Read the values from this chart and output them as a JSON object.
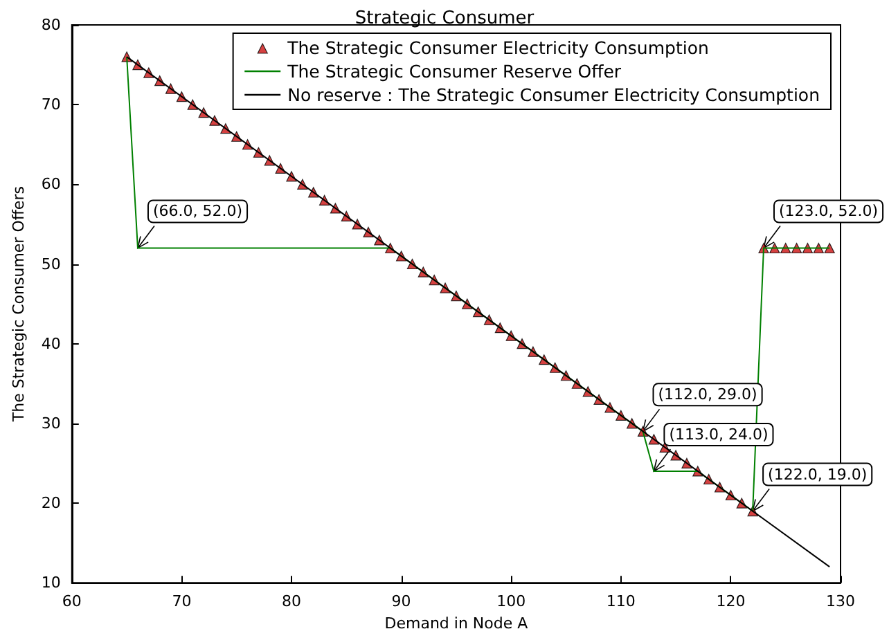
{
  "chart_data": {
    "type": "line",
    "title": "Strategic Consumer",
    "xlabel": "Demand in Node A",
    "ylabel": "The Strategic Consumer Offers",
    "xlim": [
      60,
      130
    ],
    "xticks": [
      60,
      70,
      80,
      90,
      100,
      110,
      120,
      130
    ],
    "ylim": [
      10,
      80
    ],
    "yticks": [
      10,
      20,
      30,
      40,
      50,
      60,
      70,
      80
    ],
    "legend": "top right",
    "series": [
      {
        "name": "The Strategic Consumer Electricity Consumption",
        "type": "scatter",
        "marker": "triangle",
        "color": "#cc1111",
        "x": [
          65,
          66,
          67,
          68,
          69,
          70,
          71,
          72,
          73,
          74,
          75,
          76,
          77,
          78,
          79,
          80,
          81,
          82,
          83,
          84,
          85,
          86,
          87,
          88,
          89,
          90,
          91,
          92,
          93,
          94,
          95,
          96,
          97,
          98,
          99,
          100,
          101,
          102,
          103,
          104,
          105,
          106,
          107,
          108,
          109,
          110,
          111,
          112,
          113,
          114,
          115,
          116,
          117,
          118,
          119,
          120,
          121,
          122,
          123,
          124,
          125,
          126,
          127,
          128,
          129
        ],
        "values": [
          76,
          75,
          74,
          73,
          72,
          71,
          70,
          69,
          68,
          67,
          66,
          65,
          64,
          63,
          62,
          61,
          60,
          59,
          58,
          57,
          56,
          55,
          54,
          53,
          52,
          51,
          50,
          49,
          48,
          47,
          46,
          45,
          44,
          43,
          42,
          41,
          40,
          39,
          38,
          37,
          36,
          35,
          34,
          33,
          32,
          31,
          30,
          29,
          28,
          27,
          26,
          25,
          24,
          23,
          22,
          21,
          20,
          19,
          52,
          52,
          52,
          52,
          52,
          52,
          52
        ]
      },
      {
        "name": "The Strategic Consumer Reserve Offer",
        "type": "line",
        "color": "#008000",
        "x": [
          65,
          66,
          89,
          112,
          113,
          117,
          122,
          123,
          129
        ],
        "values": [
          76,
          52,
          52,
          29,
          24,
          24,
          19,
          52,
          52
        ]
      },
      {
        "name": "No reserve : The Strategic Consumer Electricity Consumption",
        "type": "line",
        "color": "#000000",
        "x": [
          65,
          129
        ],
        "values": [
          76,
          12
        ]
      }
    ],
    "annotations": [
      {
        "text": "(66.0, 52.0)",
        "x": 66,
        "y": 52
      },
      {
        "text": "(112.0, 29.0)",
        "x": 112,
        "y": 29
      },
      {
        "text": "(113.0, 24.0)",
        "x": 113,
        "y": 24
      },
      {
        "text": "(122.0, 19.0)",
        "x": 122,
        "y": 19
      },
      {
        "text": "(123.0, 52.0)",
        "x": 123,
        "y": 52
      }
    ]
  }
}
